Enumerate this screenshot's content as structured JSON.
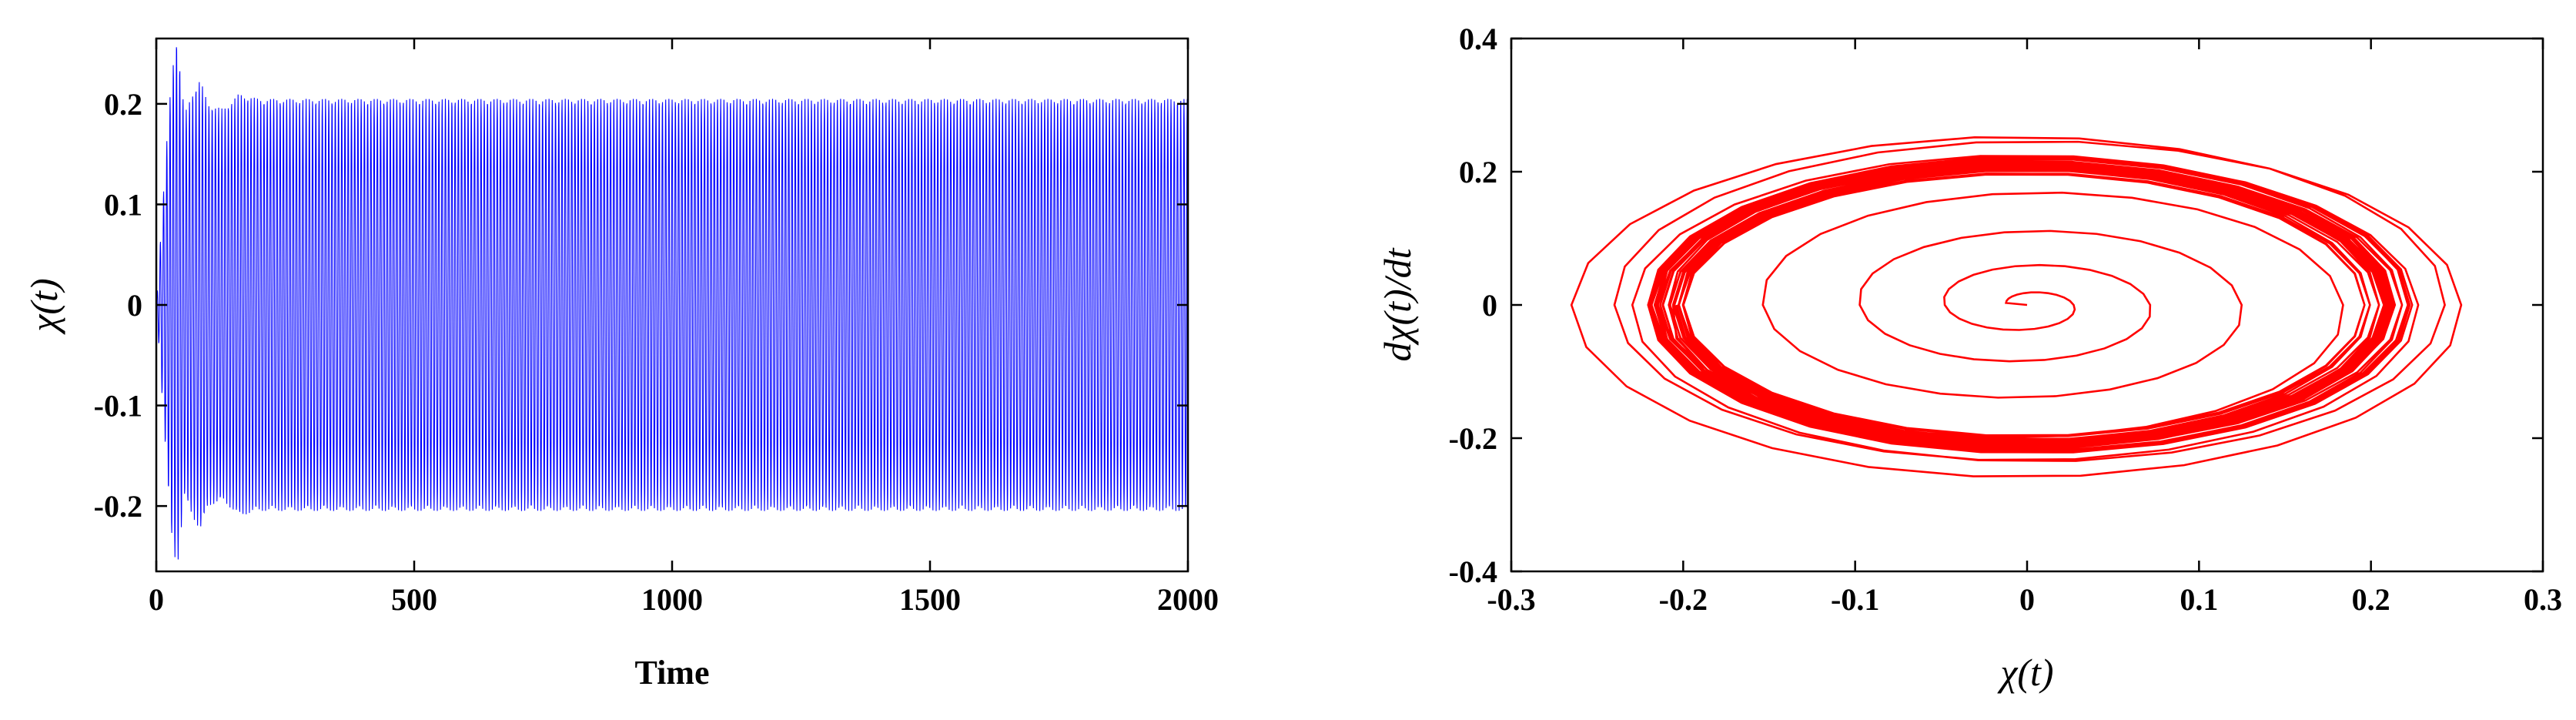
{
  "chart_data": [
    {
      "type": "line",
      "xlabel": "Time",
      "ylabel": "χ(t)",
      "xlim": [
        0,
        2000
      ],
      "ylim": [
        -0.265,
        0.265
      ],
      "xticks": [
        0,
        500,
        1000,
        1500,
        2000
      ],
      "xtick_labels": [
        "0",
        "500",
        "1000",
        "1500",
        "2000"
      ],
      "yticks": [
        -0.2,
        -0.1,
        0,
        0.1,
        0.2
      ],
      "ytick_labels": [
        "-0.2",
        "-0.1",
        "0",
        "0.1",
        "0.2"
      ],
      "grid": false,
      "series": [
        {
          "color": "#0000ff",
          "oscillation_period": 6.28,
          "steady_amplitude": 0.205,
          "envelope": [
            [
              0,
              0
            ],
            [
              20,
              0.16
            ],
            [
              30,
              0.23
            ],
            [
              40,
              0.265
            ],
            [
              55,
              0.19
            ],
            [
              70,
              0.21
            ],
            [
              85,
              0.225
            ],
            [
              100,
              0.2
            ],
            [
              130,
              0.195
            ],
            [
              160,
              0.21
            ],
            [
              200,
              0.205
            ],
            [
              2000,
              0.205
            ]
          ]
        }
      ]
    },
    {
      "type": "line",
      "xlabel": "χ(t)",
      "ylabel": "dχ(t)/dt",
      "xlim": [
        -0.3,
        0.3
      ],
      "ylim": [
        -0.4,
        0.4
      ],
      "xticks": [
        -0.3,
        -0.2,
        -0.1,
        0,
        0.1,
        0.2,
        0.3
      ],
      "xtick_labels": [
        "-0.3",
        "-0.2",
        "-0.1",
        "0",
        "0.1",
        "0.2",
        "0.3"
      ],
      "yticks": [
        -0.4,
        -0.2,
        0,
        0.2,
        0.4
      ],
      "ytick_labels": [
        "-0.4",
        "-0.2",
        "0",
        "0.2",
        "0.4"
      ],
      "grid": false,
      "series": [
        {
          "color": "#ff0000",
          "start": [
            0,
            0
          ],
          "max_radius": 0.265,
          "limit_cycle_radius": 0.21
        }
      ]
    }
  ]
}
